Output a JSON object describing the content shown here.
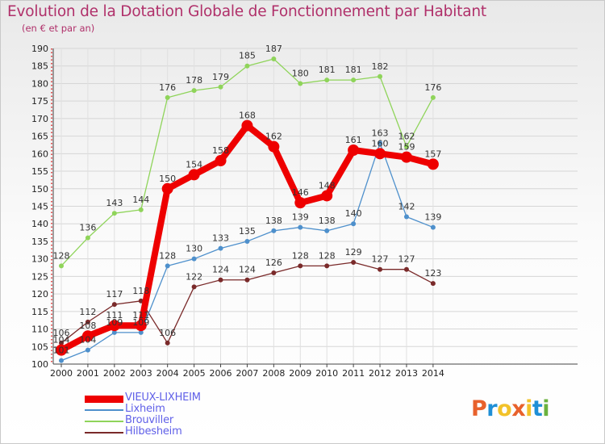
{
  "title": "Evolution de la Dotation Globale de Fonctionnement par Habitant",
  "subtitle": "(en € et par an)",
  "logo": {
    "text": "Proxiti",
    "colors": [
      "#e8612c",
      "#1f8fd6",
      "#f2c229",
      "#e8612c",
      "#f2c229",
      "#1f8fd6",
      "#6ab23e"
    ]
  },
  "chart_data": {
    "type": "line",
    "x": [
      "2000",
      "2001",
      "2002",
      "2003",
      "2004",
      "2005",
      "2006",
      "2007",
      "2008",
      "2009",
      "2010",
      "2011",
      "2012",
      "2013",
      "2014"
    ],
    "ylim": [
      100,
      190
    ],
    "yticks": [
      "100",
      "105",
      "110",
      "115",
      "120",
      "125",
      "130",
      "135",
      "140",
      "145",
      "150",
      "155",
      "160",
      "165",
      "170",
      "175",
      "180",
      "185",
      "190"
    ],
    "grid": true,
    "legend_position": "bottom-left",
    "series": [
      {
        "name": "Hilbesheim",
        "color": "#7a2a2a",
        "width": 1.3,
        "marker": 3,
        "values": [
          106,
          112,
          117,
          118,
          106,
          122,
          124,
          124,
          126,
          128,
          128,
          129,
          127,
          127,
          123
        ],
        "labels": [
          "106",
          "112",
          "117",
          "118",
          "106",
          "122",
          "124",
          "124",
          "126",
          "128",
          "128",
          "129",
          "127",
          "127",
          "123"
        ]
      },
      {
        "name": "Lixheim",
        "color": "#4e90cc",
        "width": 1.3,
        "marker": 3,
        "values": [
          101,
          104,
          109,
          109,
          128,
          130,
          133,
          135,
          138,
          139,
          138,
          140,
          163,
          142,
          139
        ],
        "labels": [
          "101",
          "104",
          "109",
          "109",
          "128",
          "130",
          "133",
          "135",
          "138",
          "139",
          "138",
          "140",
          "163",
          "142",
          "139"
        ]
      },
      {
        "name": "Brouviller",
        "color": "#8fd45a",
        "width": 1.3,
        "marker": 3,
        "values": [
          128,
          136,
          143,
          144,
          176,
          178,
          179,
          185,
          187,
          180,
          181,
          181,
          182,
          162,
          176
        ],
        "labels": [
          "128",
          "136",
          "143",
          "144",
          "176",
          "178",
          "179",
          "185",
          "187",
          "180",
          "181",
          "181",
          "182",
          "162",
          "176"
        ]
      },
      {
        "name": "VIEUX-LIXHEIM",
        "color": "#ee0000",
        "width": 8,
        "marker": 7,
        "values": [
          104,
          108,
          111,
          111,
          150,
          154,
          158,
          168,
          162,
          146,
          148,
          161,
          160,
          159,
          157
        ],
        "labels": [
          "104",
          "108",
          "111",
          "111",
          "150",
          "154",
          "158",
          "168",
          "162",
          "146",
          "148",
          "161",
          "160",
          "159",
          "157"
        ]
      }
    ],
    "legend_order": [
      "VIEUX-LIXHEIM",
      "Lixheim",
      "Brouviller",
      "Hilbesheim"
    ]
  }
}
